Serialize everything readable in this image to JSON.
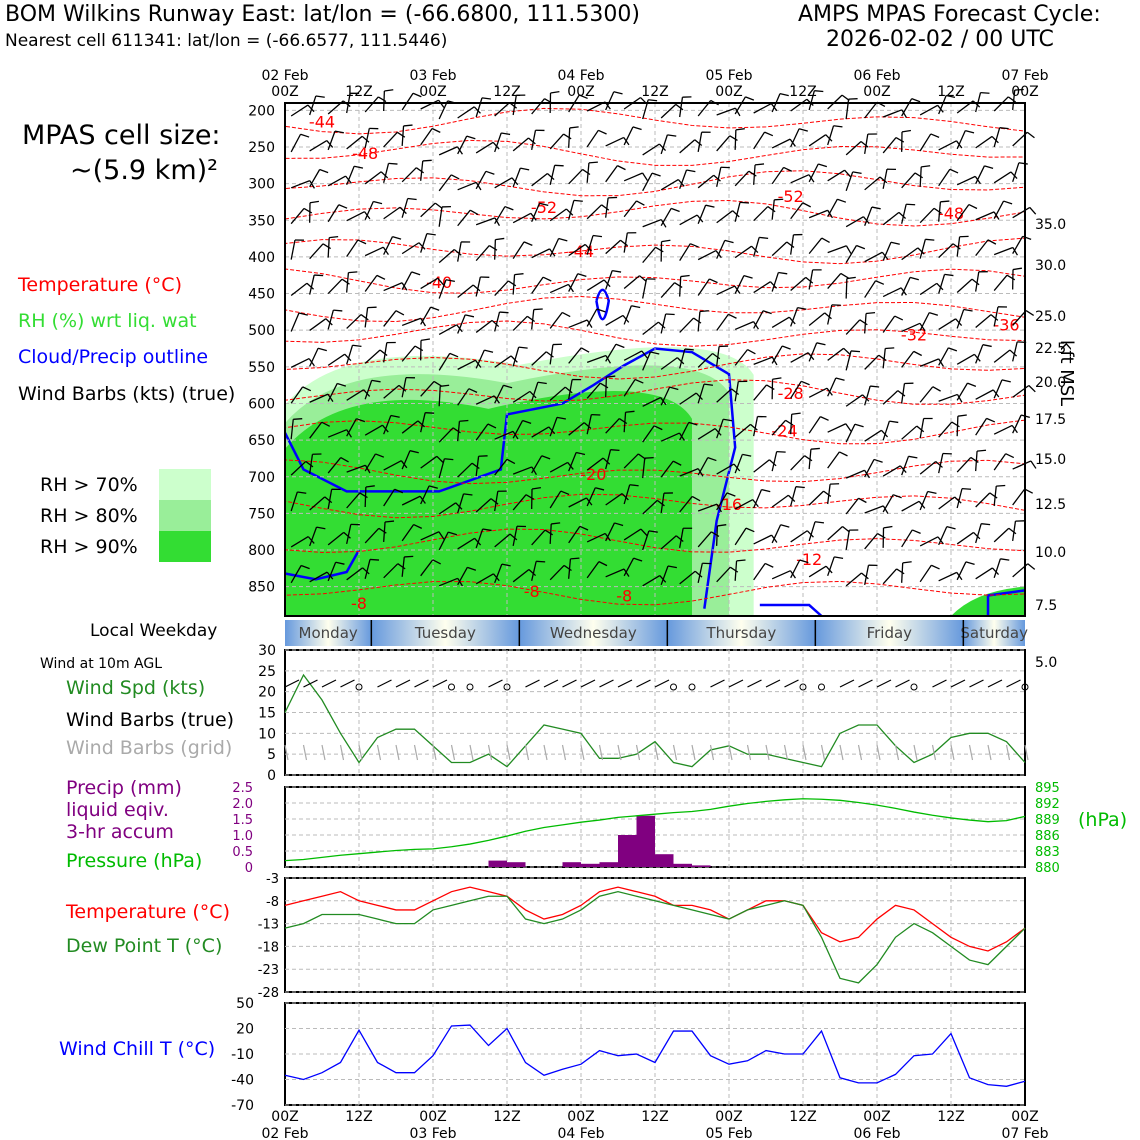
{
  "header": {
    "title": "BOM Wilkins Runway East: lat/lon = (-66.6800, 111.5300)",
    "subtitle": "Nearest cell 611341: lat/lon = (-66.6577, 111.5446)",
    "cycle_line1": "AMPS MPAS Forecast Cycle:",
    "cycle_line2": "2026-02-02 / 00 UTC",
    "cell_size_line1": "MPAS cell size:",
    "cell_size_line2": "~(5.9 km)²"
  },
  "legend": {
    "temperature": "Temperature (°C)",
    "rh": "RH (%) wrt liq. wat",
    "cloud": "Cloud/Precip outline",
    "wind": "Wind Barbs (kts) (true)",
    "rh70": "RH > 70%",
    "rh80": "RH > 80%",
    "rh90": "RH > 90%"
  },
  "labels": {
    "weekday": "Local Weekday",
    "wind10": "Wind at 10m AGL",
    "wind_speed": "Wind Spd (kts)",
    "wind_barbs_true": "Wind Barbs (true)",
    "wind_barbs_grid": "Wind Barbs (grid)",
    "precip1": "Precip (mm)",
    "precip2": "liquid eqiv.",
    "precip3": "3-hr accum",
    "pressure": "Pressure (hPa)",
    "hpa": "(hPa)",
    "temperature": "Temperature (°C)",
    "dewpoint": "Dew Point T (°C)",
    "wind_chill": "Wind Chill T (°C)",
    "kft": "kft MSL"
  },
  "colors": {
    "temp": "#ff0000",
    "dew": "#228b22",
    "pressure": "#00bb00",
    "precip": "#800080",
    "cloud": "#0000ff",
    "rh70": "#ccffcc",
    "rh80": "#99ee99",
    "rh90": "#33dd33",
    "wchill": "#0000ff"
  },
  "chart_data": [
    {
      "type": "heatmap",
      "title": "Time-height cross section",
      "x_ticks_top": [
        {
          "l1": "02 Feb",
          "l2": "00Z"
        },
        {
          "l1": "",
          "l2": "12Z"
        },
        {
          "l1": "03 Feb",
          "l2": "00Z"
        },
        {
          "l1": "",
          "l2": "12Z"
        },
        {
          "l1": "04 Feb",
          "l2": "00Z"
        },
        {
          "l1": "",
          "l2": "12Z"
        },
        {
          "l1": "05 Feb",
          "l2": "00Z"
        },
        {
          "l1": "",
          "l2": "12Z"
        },
        {
          "l1": "06 Feb",
          "l2": "00Z"
        },
        {
          "l1": "",
          "l2": "12Z"
        },
        {
          "l1": "07 Feb",
          "l2": "00Z"
        }
      ],
      "x_range_hours": [
        0,
        120
      ],
      "ylabel_left": "Pressure (hPa)",
      "pressure_range": [
        190,
        890
      ],
      "pressure_ticks": [
        200,
        250,
        300,
        350,
        400,
        450,
        500,
        550,
        600,
        650,
        700,
        750,
        800,
        850
      ],
      "ylabel_right": "kft MSL",
      "kft_ticks": [
        {
          "label": "35.0",
          "p": 202
        },
        {
          "label": "30.0",
          "p": 232
        },
        {
          "label": "25.0",
          "p": 275
        },
        {
          "label": "22.5",
          "p": 300
        },
        {
          "label": "20.0",
          "p": 330
        },
        {
          "label": "17.5",
          "p": 361
        },
        {
          "label": "15.0",
          "p": 393
        },
        {
          "label": "12.5",
          "p": 428
        },
        {
          "label": "10.0",
          "p": 464
        },
        {
          "label": "7.5",
          "p": 503
        },
        {
          "label": "5.0",
          "p": 543
        }
      ],
      "temp_contour_labels": [
        {
          "v": "-44",
          "t": 6,
          "p": 215
        },
        {
          "v": "-48",
          "t": 13,
          "p": 258
        },
        {
          "v": "-52",
          "t": 42,
          "p": 332
        },
        {
          "v": "-44",
          "t": 48,
          "p": 392
        },
        {
          "v": "-40",
          "t": 25,
          "p": 434
        },
        {
          "v": "-52",
          "t": 82,
          "p": 317
        },
        {
          "v": "-48",
          "t": 108,
          "p": 340
        },
        {
          "v": "-36",
          "t": 117,
          "p": 492
        },
        {
          "v": "-32",
          "t": 102,
          "p": 506
        },
        {
          "v": "-28",
          "t": 82,
          "p": 586
        },
        {
          "v": "-24",
          "t": 81,
          "p": 637
        },
        {
          "v": "-20",
          "t": 50,
          "p": 696
        },
        {
          "v": "-16",
          "t": 72,
          "p": 737
        },
        {
          "v": "-12",
          "t": 85,
          "p": 812
        },
        {
          "v": "-8",
          "t": 12,
          "p": 872
        },
        {
          "v": "-8",
          "t": 40,
          "p": 856
        },
        {
          "v": "-8",
          "t": 55,
          "p": 862
        }
      ],
      "rh_regions": [
        {
          "level": 70,
          "t0": 0,
          "t1": 76,
          "p0": 520,
          "p1": 890
        },
        {
          "level": 80,
          "t0": 0,
          "t1": 72,
          "p0": 545,
          "p1": 890
        },
        {
          "level": 90,
          "t0": 0,
          "t1": 66,
          "p0": 580,
          "p1": 890
        }
      ]
    },
    {
      "type": "line",
      "title": "10m wind speed",
      "x": [
        0,
        3,
        6,
        9,
        12,
        15,
        18,
        21,
        24,
        27,
        30,
        33,
        36,
        39,
        42,
        45,
        48,
        51,
        54,
        57,
        60,
        63,
        66,
        69,
        72,
        75,
        78,
        81,
        84,
        87,
        90,
        93,
        96,
        99,
        102,
        105,
        108,
        111,
        114,
        117,
        120
      ],
      "ylim": [
        0,
        30
      ],
      "yticks": [
        0,
        5,
        10,
        15,
        20,
        25,
        30
      ],
      "series": [
        {
          "name": "Wind Spd (kts)",
          "values": [
            15,
            24,
            18,
            10,
            3,
            9,
            11,
            11,
            7,
            3,
            3,
            5,
            2,
            7,
            12,
            11,
            10,
            4,
            4,
            5,
            8,
            3,
            2,
            6,
            7,
            5,
            5,
            4,
            3,
            2,
            10,
            12,
            12,
            7,
            3,
            5,
            9,
            10,
            10,
            8,
            3
          ]
        }
      ]
    },
    {
      "type": "bar",
      "title": "Precip (mm) liquid eqiv. 3-hr accum / Pressure (hPa)",
      "x": [
        0,
        3,
        6,
        9,
        12,
        15,
        18,
        21,
        24,
        27,
        30,
        33,
        36,
        39,
        42,
        45,
        48,
        51,
        54,
        57,
        60,
        63,
        66,
        69,
        72,
        75,
        78,
        81,
        84,
        87,
        90,
        93,
        96,
        99,
        102,
        105,
        108,
        111,
        114,
        117,
        120
      ],
      "ylim_precip": [
        0,
        2.5
      ],
      "yticks_precip": [
        "0",
        "0.5",
        "1.0",
        "1.5",
        "2.0",
        "2.5"
      ],
      "precip": [
        0,
        0,
        0,
        0,
        0,
        0,
        0,
        0,
        0,
        0,
        0,
        0.2,
        0.15,
        0,
        0,
        0.15,
        0.1,
        0.15,
        1.0,
        1.6,
        0.4,
        0.1,
        0.05,
        0,
        0,
        0,
        0,
        0,
        0,
        0,
        0,
        0,
        0,
        0,
        0,
        0,
        0,
        0,
        0,
        0,
        0
      ],
      "ylim_pressure": [
        880,
        895
      ],
      "yticks_pressure": [
        "880",
        "883",
        "886",
        "889",
        "892",
        "895"
      ],
      "pressure": [
        881.2,
        881.4,
        881.8,
        882.2,
        882.5,
        882.8,
        883.1,
        883.3,
        883.4,
        883.8,
        884.3,
        885.0,
        885.8,
        886.7,
        887.4,
        887.9,
        888.4,
        888.8,
        889.3,
        889.6,
        889.9,
        890.2,
        890.4,
        890.8,
        891.4,
        891.9,
        892.3,
        892.6,
        892.8,
        892.7,
        892.5,
        892.1,
        891.6,
        891.0,
        890.3,
        889.7,
        889.2,
        888.8,
        888.5,
        888.7,
        889.5
      ]
    },
    {
      "type": "line",
      "title": "Temperature / Dew Point",
      "x": [
        0,
        3,
        6,
        9,
        12,
        15,
        18,
        21,
        24,
        27,
        30,
        33,
        36,
        39,
        42,
        45,
        48,
        51,
        54,
        57,
        60,
        63,
        66,
        69,
        72,
        75,
        78,
        81,
        84,
        87,
        90,
        93,
        96,
        99,
        102,
        105,
        108,
        111,
        114,
        117,
        120
      ],
      "ylim": [
        -28,
        -3
      ],
      "yticks": [
        -3,
        -8,
        -13,
        -18,
        -23,
        -28
      ],
      "series": [
        {
          "name": "Temperature (°C)",
          "values": [
            -9,
            -8,
            -7,
            -6,
            -8,
            -9,
            -10,
            -10,
            -8,
            -6,
            -5,
            -6,
            -7,
            -10,
            -12,
            -11,
            -9,
            -6,
            -5,
            -6,
            -7,
            -9,
            -9,
            -10,
            -12,
            -10,
            -8,
            -8,
            -9,
            -15,
            -17,
            -16,
            -12,
            -9,
            -10,
            -13,
            -16,
            -18,
            -19,
            -17,
            -14
          ],
          "color": "#ff0000"
        },
        {
          "name": "Dew Point T (°C)",
          "values": [
            -14,
            -13,
            -11,
            -11,
            -11,
            -12,
            -13,
            -13,
            -10,
            -9,
            -8,
            -7,
            -7,
            -12,
            -13,
            -12,
            -10,
            -7,
            -6,
            -7,
            -8,
            -9,
            -10,
            -11,
            -12,
            -10,
            -9,
            -8,
            -9,
            -16,
            -25,
            -26,
            -22,
            -16,
            -13,
            -15,
            -18,
            -21,
            -22,
            -18,
            -14
          ],
          "color": "#228b22"
        }
      ]
    },
    {
      "type": "line",
      "title": "Wind Chill T (°C)",
      "x": [
        0,
        3,
        6,
        9,
        12,
        15,
        18,
        21,
        24,
        27,
        30,
        33,
        36,
        39,
        42,
        45,
        48,
        51,
        54,
        57,
        60,
        63,
        66,
        69,
        72,
        75,
        78,
        81,
        84,
        87,
        90,
        93,
        96,
        99,
        102,
        105,
        108,
        111,
        114,
        117,
        120
      ],
      "ylim": [
        -70,
        50
      ],
      "yticks": [
        -70,
        -40,
        -10,
        20,
        50
      ],
      "series": [
        {
          "name": "Wind Chill T (°C)",
          "values": [
            -35,
            -40,
            -32,
            -20,
            18,
            -20,
            -32,
            -32,
            -12,
            23,
            24,
            0,
            20,
            -20,
            -35,
            -28,
            -22,
            -6,
            -12,
            -10,
            -20,
            17,
            17,
            -12,
            -22,
            -18,
            -6,
            -10,
            -10,
            17,
            -38,
            -44,
            -44,
            -34,
            -12,
            -10,
            14,
            -38,
            -46,
            -48,
            -42
          ]
        }
      ]
    }
  ],
  "weekday_bar": [
    "Monday",
    "Tuesday",
    "Wednesday",
    "Thursday",
    "Friday",
    "Saturday"
  ],
  "bottom_axis": [
    {
      "l1": "00Z",
      "l2": "02 Feb"
    },
    {
      "l1": "12Z",
      "l2": ""
    },
    {
      "l1": "00Z",
      "l2": "03 Feb"
    },
    {
      "l1": "12Z",
      "l2": ""
    },
    {
      "l1": "00Z",
      "l2": "04 Feb"
    },
    {
      "l1": "12Z",
      "l2": ""
    },
    {
      "l1": "00Z",
      "l2": "05 Feb"
    },
    {
      "l1": "12Z",
      "l2": ""
    },
    {
      "l1": "00Z",
      "l2": "06 Feb"
    },
    {
      "l1": "12Z",
      "l2": ""
    },
    {
      "l1": "00Z",
      "l2": "07 Feb"
    }
  ]
}
